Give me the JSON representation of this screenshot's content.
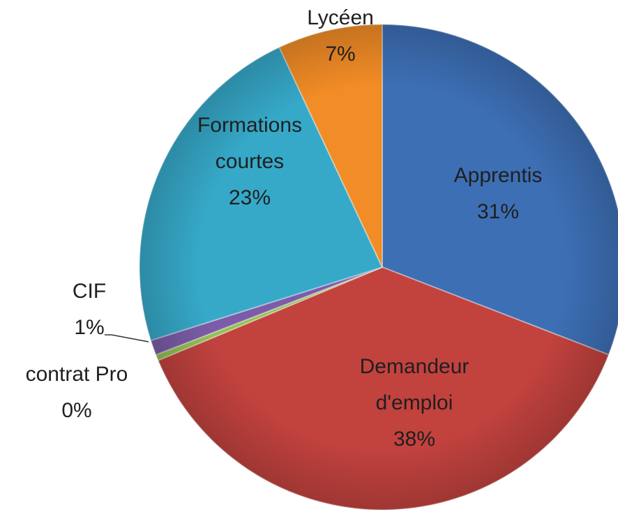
{
  "chart_data": {
    "type": "pie",
    "categories": [
      "Apprentis",
      "Demandeur d'emploi",
      "contrat Pro",
      "CIF",
      "Formations courtes",
      "Lycéen"
    ],
    "values": [
      31,
      38,
      0.4,
      1,
      23,
      7
    ],
    "value_labels": [
      "31%",
      "38%",
      "0%",
      "1%",
      "23%",
      "7%"
    ],
    "colors": [
      "#3d6fb5",
      "#c2423e",
      "#94c152",
      "#7c5ca9",
      "#36a9c9",
      "#f28c26"
    ]
  }
}
